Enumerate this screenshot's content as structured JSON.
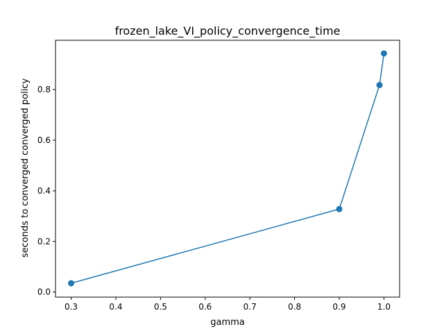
{
  "chart_data": {
    "type": "line",
    "title": "frozen_lake_VI_policy_convergence_time",
    "xlabel": "gamma",
    "ylabel": "seconds to converged converged policy",
    "x": [
      0.3,
      0.9,
      0.99,
      1.0
    ],
    "series": [
      {
        "values": [
          0.035,
          0.328,
          0.818,
          0.943
        ],
        "color": "#1f77b4",
        "marker": "circle"
      }
    ],
    "xlim": [
      0.265,
      1.035
    ],
    "ylim": [
      -0.02,
      0.995
    ],
    "xticks": [
      0.3,
      0.4,
      0.5,
      0.6,
      0.7,
      0.8,
      0.9,
      1.0
    ],
    "xtick_labels": [
      "0.3",
      "0.4",
      "0.5",
      "0.6",
      "0.7",
      "0.8",
      "0.9",
      "1.0"
    ],
    "yticks": [
      0.0,
      0.2,
      0.4,
      0.6,
      0.8
    ],
    "ytick_labels": [
      "0.0",
      "0.2",
      "0.4",
      "0.6",
      "0.8"
    ],
    "grid": false,
    "legend": "none"
  }
}
